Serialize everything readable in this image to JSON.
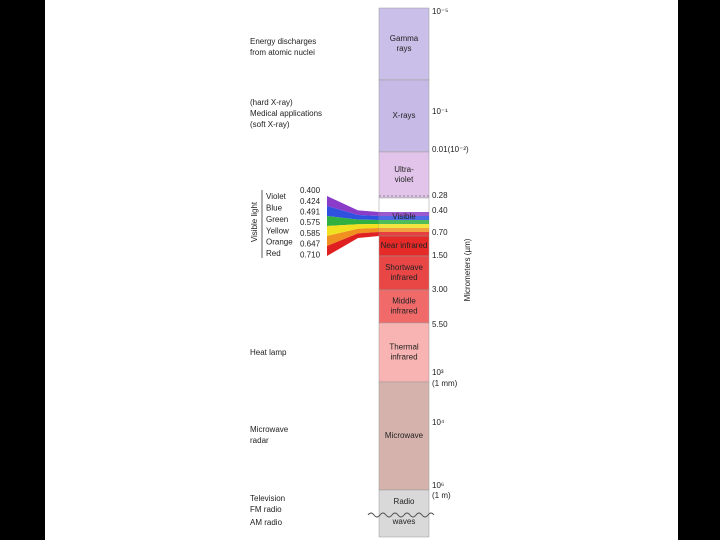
{
  "bands": [
    {
      "lines": [
        "Gamma",
        "rays"
      ]
    },
    {
      "lines": [
        "X-rays"
      ]
    },
    {
      "lines": [
        "Ultra-",
        "violet"
      ]
    },
    {
      "lines": [
        "Visible"
      ]
    },
    {
      "lines": [
        "Near infrared"
      ]
    },
    {
      "lines": [
        "Shortwave",
        "infrared"
      ]
    },
    {
      "lines": [
        "Middle",
        "infrared"
      ]
    },
    {
      "lines": [
        "Thermal",
        "infrared"
      ]
    },
    {
      "lines": [
        "Microwave"
      ]
    },
    {
      "lines": [
        "Radio",
        "waves"
      ]
    }
  ],
  "scale": {
    "labels": [
      "10⁻⁵",
      "10⁻¹",
      "0.01(10⁻²)",
      "0.28",
      "0.40",
      "0.70",
      "1.50",
      "3.00",
      "5.50",
      "10³",
      "(1 mm)",
      "10⁴",
      "10⁶",
      "(1 m)"
    ],
    "axis_title": "Micrometers (µm)"
  },
  "applications": [
    {
      "lines": [
        "Energy discharges",
        "from atomic nuclei"
      ]
    },
    {
      "lines": [
        "(hard X-ray)",
        "Medical applications",
        "(soft X-ray)"
      ]
    },
    {
      "lines": [
        "Heat lamp"
      ]
    },
    {
      "lines": [
        "Microwave",
        "radar"
      ]
    },
    {
      "lines": [
        "Television",
        "FM radio"
      ]
    },
    {
      "lines": [
        "AM radio"
      ]
    }
  ],
  "visible_light": {
    "title": "Visible light",
    "colors": [
      "Violet",
      "Blue",
      "Green",
      "Yellow",
      "Orange",
      "Red"
    ],
    "wavelengths": [
      "0.400",
      "0.424",
      "0.491",
      "0.575",
      "0.585",
      "0.647",
      "0.710"
    ]
  }
}
